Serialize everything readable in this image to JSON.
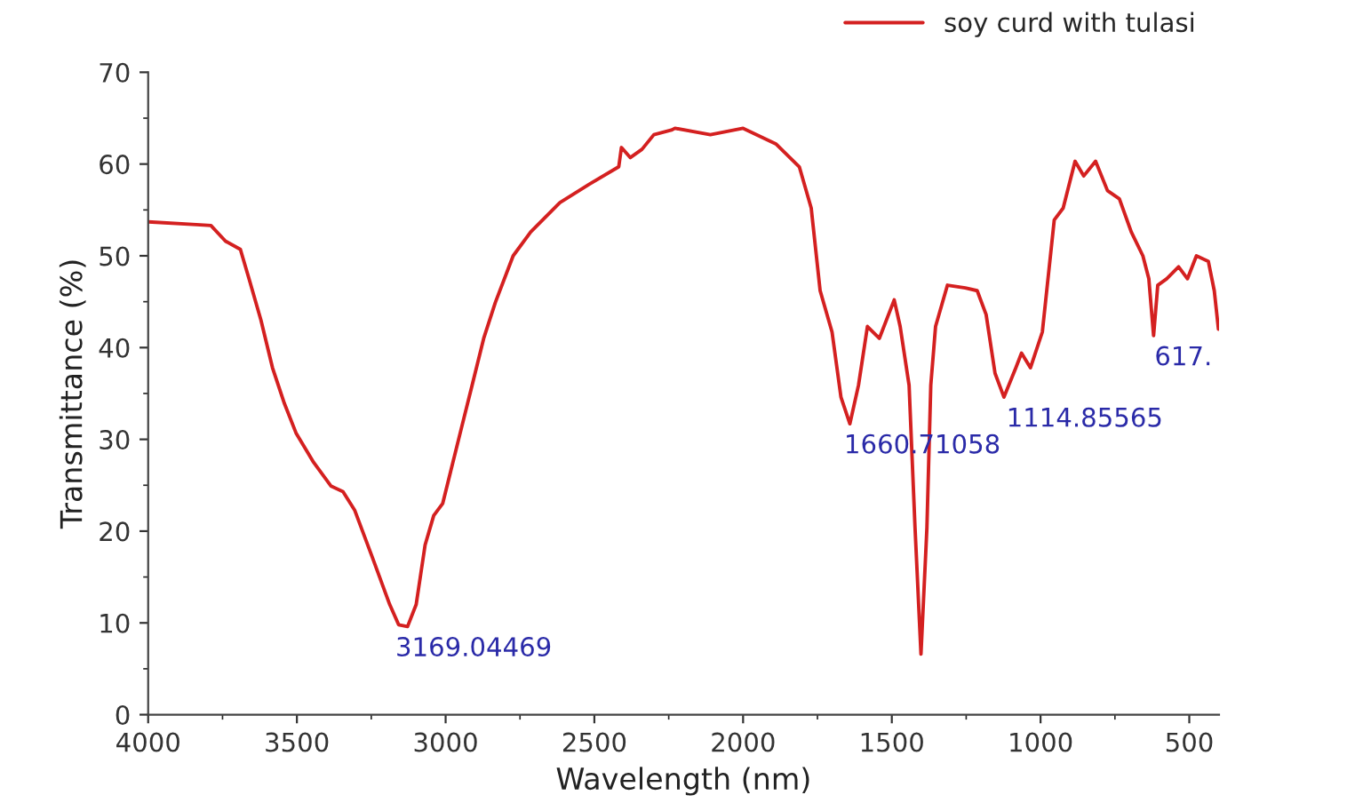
{
  "chart_data": {
    "type": "line",
    "xlabel": "Wavelength (nm)",
    "ylabel": "Transmittance (%)",
    "xlim": [
      4000,
      400
    ],
    "xticks": [
      4000,
      3500,
      3000,
      2500,
      2000,
      1500,
      1000,
      500
    ],
    "ylim": [
      0,
      70
    ],
    "yticks": [
      0,
      10,
      20,
      30,
      40,
      50,
      60,
      70
    ],
    "grid": false,
    "legend": "top right",
    "marker": "none",
    "line_style": "solid",
    "series": [
      {
        "name": "soy curd with tulasi",
        "color": "#d42020",
        "x": [
          4000,
          3838,
          3789,
          3740,
          3690,
          3661,
          3621,
          3582,
          3542,
          3503,
          3444,
          3385,
          3345,
          3306,
          3247,
          3188,
          3158,
          3128,
          3099,
          3069,
          3040,
          3010,
          2951,
          2911,
          2872,
          2833,
          2773,
          2714,
          2616,
          2517,
          2418,
          2409,
          2379,
          2340,
          2300,
          2241,
          2229,
          2110,
          2000,
          1890,
          1811,
          1771,
          1741,
          1701,
          1671,
          1641,
          1612,
          1582,
          1542,
          1492,
          1472,
          1442,
          1422,
          1402,
          1382,
          1369,
          1353,
          1313,
          1253,
          1213,
          1183,
          1153,
          1123,
          1083,
          1064,
          1034,
          994,
          954,
          924,
          884,
          855,
          815,
          775,
          735,
          695,
          656,
          636,
          620,
          606,
          576,
          536,
          506,
          476,
          436,
          416,
          402
        ],
        "values": [
          53.7,
          53.4,
          53.3,
          51.6,
          50.7,
          47.5,
          43,
          37.8,
          33.9,
          30.7,
          27.5,
          24.9,
          24.3,
          22.3,
          17.2,
          12,
          9.8,
          9.6,
          12,
          18.5,
          21.7,
          23,
          30.7,
          35.9,
          41,
          44.9,
          50,
          52.6,
          55.8,
          57.8,
          59.7,
          61.8,
          60.7,
          61.6,
          63.2,
          63.7,
          63.9,
          63.2,
          63.9,
          62.2,
          59.7,
          55.2,
          46.2,
          41.7,
          34.6,
          31.7,
          35.9,
          42.3,
          41,
          45.2,
          42.3,
          35.9,
          20.4,
          6.6,
          20.4,
          35.9,
          42.3,
          46.8,
          46.5,
          46.2,
          43.6,
          37.2,
          34.6,
          37.8,
          39.4,
          37.8,
          41.7,
          53.9,
          55.2,
          60.3,
          58.7,
          60.3,
          57.1,
          56.2,
          52.6,
          50,
          47.5,
          41.3,
          46.8,
          47.5,
          48.8,
          47.5,
          50,
          49.4,
          46.2,
          42
        ]
      }
    ],
    "annotations": [
      {
        "text": "3169.04469",
        "x": 3169,
        "y": 9.6
      },
      {
        "text": "1660.71058",
        "x": 1660.7,
        "y": 31.7
      },
      {
        "text": "1114.85565",
        "x": 1114.9,
        "y": 34.6
      },
      {
        "text": "617.",
        "x": 617,
        "y": 41.3
      }
    ]
  }
}
